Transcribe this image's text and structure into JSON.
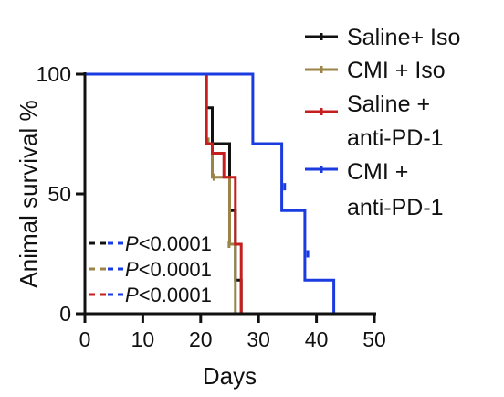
{
  "chart_data": {
    "type": "line",
    "subtype": "kaplan-meier",
    "title": "",
    "xlabel": "Days",
    "ylabel": "Animal survival %",
    "xlim": [
      0,
      50
    ],
    "ylim": [
      0,
      100
    ],
    "xticks": [
      0,
      10,
      20,
      30,
      40,
      50
    ],
    "yticks": [
      0,
      50,
      100
    ],
    "xtick_labels": [
      "0",
      "10",
      "20",
      "30",
      "40",
      "50"
    ],
    "ytick_labels": [
      "0",
      "50",
      "100"
    ],
    "grid": false,
    "legend_position": "top-right",
    "series": [
      {
        "name": "Saline+ Iso",
        "color": "#111111",
        "steps": [
          [
            0,
            100
          ],
          [
            21,
            100
          ],
          [
            21,
            86
          ],
          [
            22,
            86
          ],
          [
            22,
            71
          ],
          [
            25,
            71
          ],
          [
            25,
            43
          ],
          [
            26,
            43
          ],
          [
            26,
            14
          ],
          [
            27,
            14
          ],
          [
            27,
            0
          ]
        ],
        "censored": []
      },
      {
        "name": "CMI + Iso",
        "color": "#9a8447",
        "steps": [
          [
            0,
            100
          ],
          [
            21,
            100
          ],
          [
            21,
            71
          ],
          [
            22,
            71
          ],
          [
            22,
            57
          ],
          [
            25,
            57
          ],
          [
            25,
            29
          ],
          [
            26,
            29
          ],
          [
            26,
            0
          ]
        ],
        "censored": [
          [
            21.3,
            72
          ],
          [
            22.3,
            57
          ],
          [
            24.9,
            29
          ]
        ]
      },
      {
        "name": "Saline +\nanti-PD-1",
        "color": "#c41e1e",
        "steps": [
          [
            0,
            100
          ],
          [
            21,
            100
          ],
          [
            21,
            71
          ],
          [
            22,
            71
          ],
          [
            22,
            67
          ],
          [
            24,
            67
          ],
          [
            24,
            57
          ],
          [
            26,
            57
          ],
          [
            26,
            29
          ],
          [
            27,
            29
          ],
          [
            27,
            0
          ]
        ],
        "censored": []
      },
      {
        "name": "CMI +\nanti-PD-1",
        "color": "#1a3be0",
        "steps": [
          [
            0,
            100
          ],
          [
            29,
            100
          ],
          [
            29,
            71
          ],
          [
            34,
            71
          ],
          [
            34,
            43
          ],
          [
            38,
            43
          ],
          [
            38,
            14
          ],
          [
            43,
            14
          ],
          [
            43,
            0
          ]
        ],
        "censored": [
          [
            34.5,
            53
          ],
          [
            38.5,
            25
          ]
        ]
      }
    ],
    "legend": [
      {
        "line1": "Saline+ Iso",
        "line2": ""
      },
      {
        "line1": "CMI + Iso",
        "line2": ""
      },
      {
        "line1": "Saline +",
        "line2": " anti-PD-1"
      },
      {
        "line1": "CMI +",
        "line2": "anti-PD-1"
      }
    ],
    "annotations": [
      {
        "left_color": "#111111",
        "right_color": "#1a3be0",
        "p_symbol": "P",
        "text": "<0.0001"
      },
      {
        "left_color": "#9a8447",
        "right_color": "#1a3be0",
        "p_symbol": "P",
        "text": "<0.0001"
      },
      {
        "left_color": "#c41e1e",
        "right_color": "#1a3be0",
        "p_symbol": "P",
        "text": "<0.0001"
      }
    ]
  }
}
